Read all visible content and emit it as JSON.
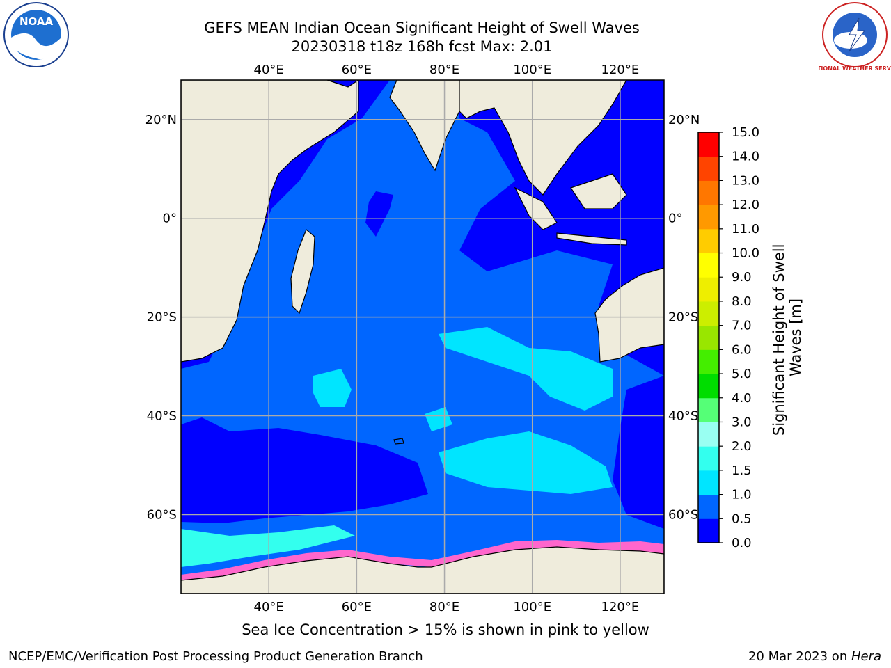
{
  "title": {
    "line1": "GEFS MEAN Indian Ocean Significant Height of Swell Waves",
    "line2": "20230318 t18z 168h fcst   Max: 2.01"
  },
  "logos": {
    "left": {
      "icon": "noaa-logo",
      "text": "NOAA"
    },
    "right": {
      "icon": "nws-logo",
      "text": "NATIONAL WEATHER SERVICE"
    }
  },
  "map": {
    "projection": "plate-carree",
    "lon_range": [
      20,
      130
    ],
    "lat_range": [
      -76,
      28
    ],
    "lon_ticks": [
      {
        "value": 40,
        "label": "40°E"
      },
      {
        "value": 60,
        "label": "60°E"
      },
      {
        "value": 80,
        "label": "80°E"
      },
      {
        "value": 100,
        "label": "100°E"
      },
      {
        "value": 120,
        "label": "120°E"
      }
    ],
    "lat_ticks": [
      {
        "value": 20,
        "label": "20°N"
      },
      {
        "value": 0,
        "label": "0°"
      },
      {
        "value": -20,
        "label": "20°S"
      },
      {
        "value": -40,
        "label": "40°S"
      },
      {
        "value": -60,
        "label": "60°S"
      }
    ],
    "grid": true,
    "land_color": "#efecdc",
    "ice_colors": [
      "#ff66cc",
      "#ffcc66",
      "#ffff66"
    ]
  },
  "colorbar": {
    "label": "Significant Height of Swell Waves [m]",
    "label_lines": [
      "Significant Height of Swell",
      "Waves [m]"
    ],
    "ticks": [
      "0.0",
      "0.5",
      "1.0",
      "1.5",
      "2.0",
      "3.0",
      "4.0",
      "5.0",
      "6.0",
      "7.0",
      "8.0",
      "9.0",
      "10.0",
      "11.0",
      "12.0",
      "13.0",
      "14.0",
      "15.0"
    ],
    "colors": [
      "#0000ff",
      "#0066ff",
      "#00e5ff",
      "#33ffee",
      "#99fff2",
      "#55ff77",
      "#00dd00",
      "#44ee00",
      "#99e600",
      "#ccee00",
      "#eeee00",
      "#ffff00",
      "#ffcc00",
      "#ff9900",
      "#ff7700",
      "#ff4400",
      "#ff0000"
    ]
  },
  "footer": {
    "note": "Sea Ice Concentration > 15% is shown in pink to yellow",
    "branch": "NCEP/EMC/Verification Post Processing Product Generation Branch",
    "date": "20 Mar 2023 on ",
    "machine": "Hera"
  }
}
